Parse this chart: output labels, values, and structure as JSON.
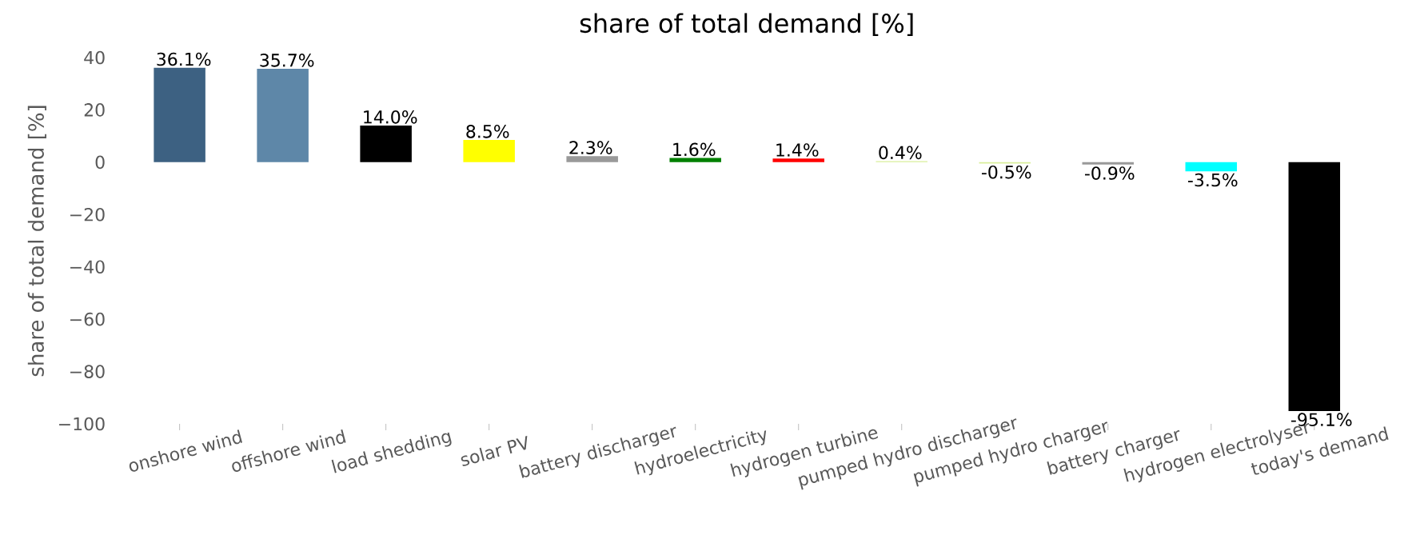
{
  "chart_data": {
    "type": "bar",
    "title": "share of total demand [%]",
    "ylabel": "share of total demand [%]",
    "categories": [
      "onshore wind",
      "offshore wind",
      "load shedding",
      "solar PV",
      "battery discharger",
      "hydroelectricity",
      "hydrogen turbine",
      "pumped hydro discharger",
      "pumped hydro charger",
      "battery charger",
      "hydrogen electrolyser",
      "today's demand"
    ],
    "values": [
      36.1,
      35.7,
      14.0,
      8.5,
      2.3,
      1.6,
      1.4,
      0.4,
      -0.5,
      -0.9,
      -3.5,
      -95.1
    ],
    "value_labels": [
      "36.1%",
      "35.7%",
      "14.0%",
      "8.5%",
      "2.3%",
      "1.6%",
      "1.4%",
      "0.4%",
      "-0.5%",
      "-0.9%",
      "-3.5%",
      "-95.1%"
    ],
    "colors": [
      "#3d6182",
      "#5e87a8",
      "#000000",
      "#ffff00",
      "#999999",
      "#008000",
      "#ff0000",
      "#d9ef9b",
      "#d9ef9b",
      "#999999",
      "#00ffff",
      "#000000"
    ],
    "ylim": [
      -100,
      40
    ],
    "yticks": [
      {
        "value": -100,
        "label": "−100"
      },
      {
        "value": -80,
        "label": "−80"
      },
      {
        "value": -60,
        "label": "−60"
      },
      {
        "value": -40,
        "label": "−40"
      },
      {
        "value": -20,
        "label": "−20"
      },
      0,
      20,
      40
    ],
    "grid": false
  }
}
